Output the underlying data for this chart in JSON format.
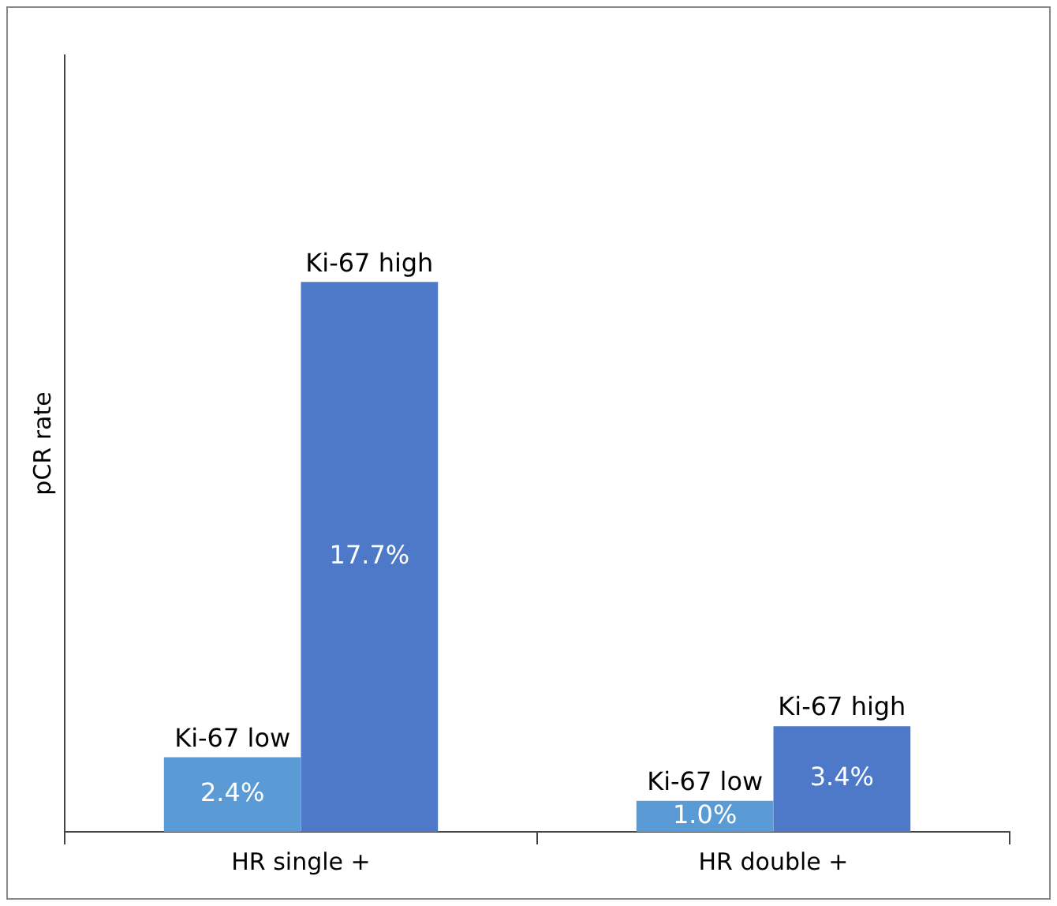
{
  "chart_data": {
    "type": "bar",
    "ylabel": "pCR rate",
    "categories": [
      "HR single +",
      "HR double +"
    ],
    "series": [
      {
        "name": "Ki-67 low",
        "color": "#5b9bd5",
        "values": [
          2.4,
          1.0
        ],
        "value_labels": [
          "2.4%",
          "1.0%"
        ]
      },
      {
        "name": "Ki-67 high",
        "color": "#4e79c8",
        "values": [
          17.7,
          3.4
        ],
        "value_labels": [
          "17.7%",
          "3.4%"
        ]
      }
    ],
    "tick_labels": "x",
    "grid": false,
    "legend": false
  }
}
